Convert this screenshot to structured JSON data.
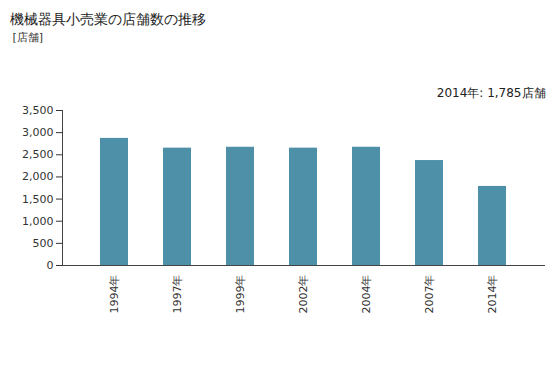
{
  "chart_data": {
    "type": "bar",
    "title": "機械器具小売業の店舗数の推移",
    "y_label": "[店舗]",
    "annotation": "2014年: 1,785店舗",
    "categories": [
      "1994年",
      "1997年",
      "1999年",
      "2002年",
      "2004年",
      "2007年",
      "2014年"
    ],
    "values": [
      2870,
      2650,
      2670,
      2650,
      2670,
      2370,
      1785
    ],
    "color": "#4f90a9",
    "ylim": [
      0,
      3500
    ],
    "yticks": [
      0,
      500,
      {
        "value": 1000,
        "label": "1,000"
      },
      {
        "value": 1500,
        "label": "1,500"
      },
      {
        "value": 2000,
        "label": "2,000"
      },
      {
        "value": 2500,
        "label": "2,500"
      },
      {
        "value": 3000,
        "label": "3,000"
      },
      {
        "value": 3500,
        "label": "3,500"
      }
    ],
    "grid": false
  }
}
